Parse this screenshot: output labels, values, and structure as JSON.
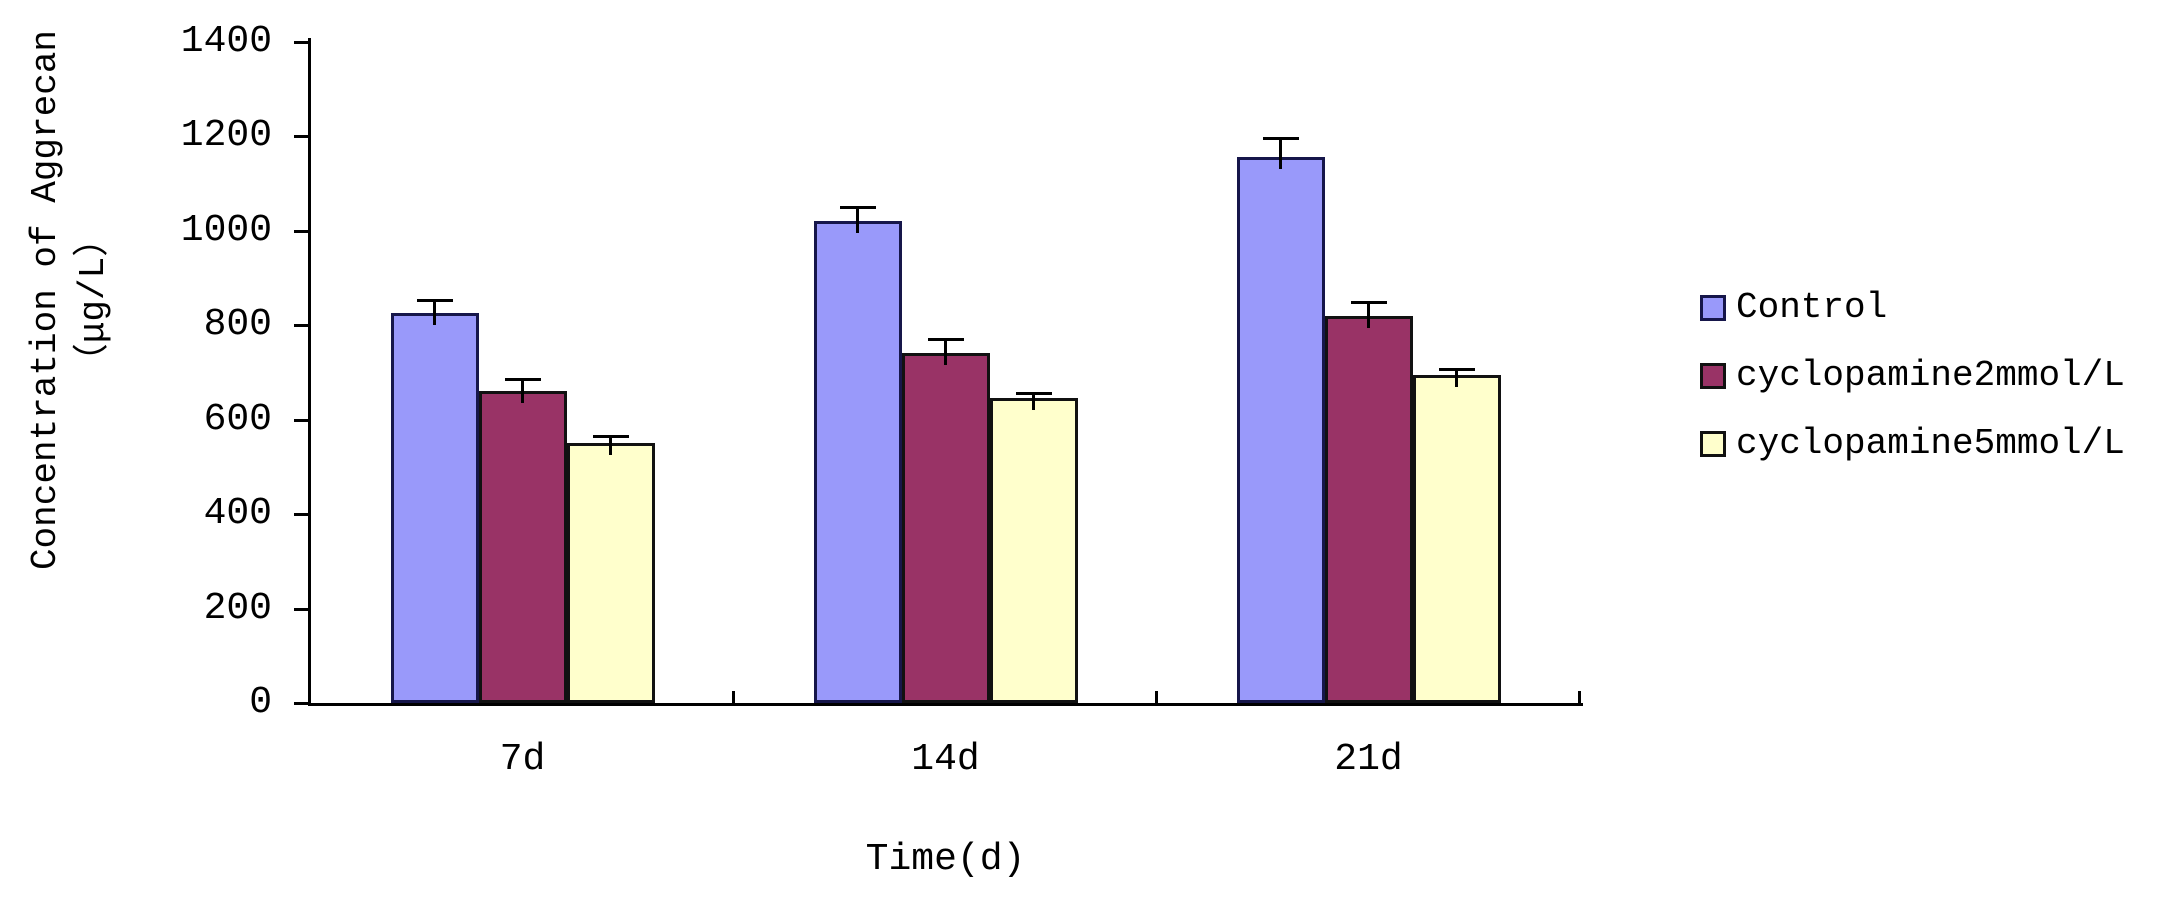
{
  "chart_data": {
    "type": "bar",
    "title": "",
    "xlabel": "Time(d)",
    "ylabel": "Concentration of Aggrecan（μg/L）",
    "ylabel_lines": [
      "Concentration of Aggrecan",
      "（μg/L）"
    ],
    "categories": [
      "7d",
      "14d",
      "21d"
    ],
    "series": [
      {
        "name": "Control",
        "values": [
          825,
          1020,
          1155
        ],
        "errors": [
          28,
          30,
          40
        ],
        "color": "#9999fa",
        "border": "#16164a"
      },
      {
        "name": "cyclopamine2mmol/L",
        "values": [
          660,
          740,
          820
        ],
        "errors": [
          25,
          30,
          28
        ],
        "color": "#993366",
        "border": "#111111"
      },
      {
        "name": "cyclopamine5mmol/L",
        "values": [
          550,
          645,
          695
        ],
        "errors": [
          15,
          12,
          12
        ],
        "color": "#ffffcc",
        "border": "#111111"
      }
    ],
    "ylim": [
      0,
      1400
    ],
    "y_ticks": [
      0,
      200,
      400,
      600,
      800,
      1000,
      1200,
      1400
    ],
    "grid": false,
    "error_bars": true,
    "legend_position": "right",
    "axis_color": "#000000",
    "background_color": "#ffffff"
  }
}
